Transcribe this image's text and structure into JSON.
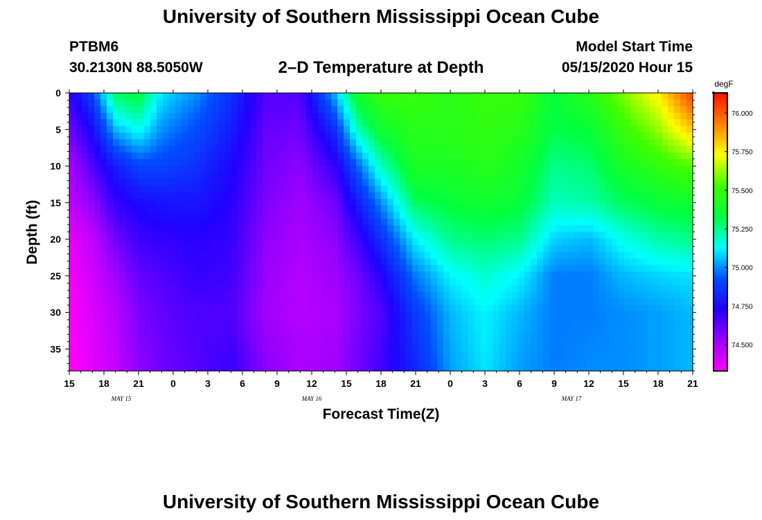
{
  "page": {
    "title_top": "University of Southern Mississippi Ocean Cube",
    "title_bottom": "University of Southern Mississippi Ocean Cube",
    "station_id": "PTBM6",
    "station_coords": "30.2130N 88.5050W",
    "plot_subtitle": "2–D Temperature at Depth",
    "model_start_label": "Model Start Time",
    "model_start_value": "05/15/2020 Hour 15"
  },
  "chart_data": {
    "type": "heatmap",
    "title": "2–D Temperature at Depth",
    "xlabel": "Forecast Time(Z)",
    "ylabel": "Depth (ft)",
    "x_start_hour": 0,
    "x_end_hour": 54,
    "y_range": [
      0,
      38
    ],
    "x_tick_hours": [
      0,
      3,
      6,
      9,
      12,
      15,
      18,
      21,
      24,
      27,
      30,
      33,
      36,
      39,
      42,
      45,
      48,
      51,
      54
    ],
    "x_tick_labels": [
      "15",
      "18",
      "21",
      "0",
      "3",
      "6",
      "9",
      "12",
      "15",
      "18",
      "21",
      "0",
      "3",
      "6",
      "9",
      "12",
      "15",
      "18",
      "21"
    ],
    "y_ticks": [
      0,
      5,
      10,
      15,
      20,
      25,
      30,
      35
    ],
    "y_tick_labels": [
      "0",
      "5",
      "10",
      "15",
      "20",
      "25",
      "30",
      "35"
    ],
    "date_labels": [
      {
        "text": "MAY 15",
        "hour": 4.5
      },
      {
        "text": "MAY 16",
        "hour": 21
      },
      {
        "text": "MAY 17",
        "hour": 43.5
      }
    ],
    "colorbar": {
      "units": "degF",
      "min": 74.33,
      "max": 76.13,
      "ticks": [
        74.5,
        74.75,
        75.0,
        75.25,
        75.5,
        75.75,
        76.0
      ],
      "tick_labels": [
        "74.500",
        "74.750",
        "75.000",
        "75.250",
        "75.500",
        "75.750",
        "76.000"
      ],
      "colors": [
        "#ff00ff",
        "#9b00ff",
        "#2000ff",
        "#0050ff",
        "#00ffff",
        "#00ff40",
        "#40ff00",
        "#ffff00",
        "#ff8000",
        "#ff1000"
      ]
    },
    "profile_depths_ft": [
      0,
      5,
      10,
      15,
      20,
      25,
      30,
      38
    ],
    "profiles": [
      {
        "hour": 0,
        "temps": [
          74.7,
          74.6,
          74.5,
          74.45,
          74.38,
          74.35,
          74.34,
          74.33
        ]
      },
      {
        "hour": 2,
        "temps": [
          74.9,
          74.75,
          74.65,
          74.55,
          74.45,
          74.42,
          74.4,
          74.38
        ]
      },
      {
        "hour": 4,
        "temps": [
          75.3,
          75.05,
          74.8,
          74.7,
          74.6,
          74.52,
          74.48,
          74.45
        ]
      },
      {
        "hour": 6,
        "temps": [
          75.35,
          75.15,
          74.9,
          74.75,
          74.68,
          74.62,
          74.58,
          74.55
        ]
      },
      {
        "hour": 8,
        "temps": [
          75.1,
          75.0,
          74.9,
          74.78,
          74.7,
          74.65,
          74.62,
          74.6
        ]
      },
      {
        "hour": 11,
        "temps": [
          75.0,
          74.92,
          74.85,
          74.78,
          74.72,
          74.7,
          74.66,
          74.64
        ]
      },
      {
        "hour": 14,
        "temps": [
          74.85,
          74.8,
          74.75,
          74.72,
          74.7,
          74.68,
          74.65,
          74.7
        ]
      },
      {
        "hour": 17,
        "temps": [
          74.65,
          74.62,
          74.6,
          74.58,
          74.55,
          74.53,
          74.52,
          74.56
        ]
      },
      {
        "hour": 20,
        "temps": [
          74.65,
          74.6,
          74.55,
          74.52,
          74.5,
          74.48,
          74.48,
          74.5
        ]
      },
      {
        "hour": 23,
        "temps": [
          75.05,
          74.85,
          74.7,
          74.6,
          74.55,
          74.52,
          74.5,
          74.52
        ]
      },
      {
        "hour": 25,
        "temps": [
          75.4,
          75.2,
          74.95,
          74.8,
          74.68,
          74.6,
          74.58,
          74.6
        ]
      },
      {
        "hour": 27,
        "temps": [
          75.5,
          75.38,
          75.2,
          75.0,
          74.85,
          74.72,
          74.65,
          74.68
        ]
      },
      {
        "hour": 30,
        "temps": [
          75.5,
          75.45,
          75.42,
          75.3,
          75.12,
          74.98,
          74.88,
          74.82
        ]
      },
      {
        "hour": 33,
        "temps": [
          75.45,
          75.45,
          75.42,
          75.35,
          75.25,
          75.12,
          75.05,
          75.02
        ]
      },
      {
        "hour": 36,
        "temps": [
          75.5,
          75.48,
          75.45,
          75.38,
          75.28,
          75.18,
          75.12,
          75.1
        ]
      },
      {
        "hour": 39,
        "temps": [
          75.5,
          75.45,
          75.4,
          75.35,
          75.25,
          75.12,
          75.05,
          75.02
        ]
      },
      {
        "hour": 42,
        "temps": [
          75.35,
          75.32,
          75.25,
          75.2,
          75.08,
          74.98,
          74.98,
          74.98
        ]
      },
      {
        "hour": 45,
        "temps": [
          75.45,
          75.35,
          75.28,
          75.22,
          75.05,
          74.98,
          74.98,
          75.0
        ]
      },
      {
        "hour": 48,
        "temps": [
          75.6,
          75.5,
          75.4,
          75.3,
          75.15,
          75.05,
          75.0,
          75.0
        ]
      },
      {
        "hour": 51,
        "temps": [
          75.75,
          75.62,
          75.48,
          75.35,
          75.22,
          75.08,
          75.02,
          75.02
        ]
      },
      {
        "hour": 54,
        "temps": [
          76.05,
          75.82,
          75.55,
          75.38,
          75.25,
          75.1,
          75.05,
          75.05
        ]
      }
    ]
  }
}
